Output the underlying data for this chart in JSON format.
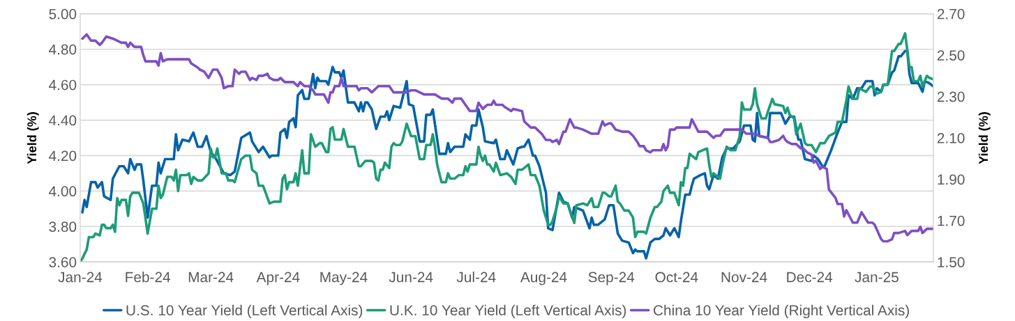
{
  "chart_data": {
    "type": "line",
    "ylabel": "Yield (%)",
    "y2label": "Yield (%)",
    "xlim": [
      "2024-01-01",
      "2025-01-27"
    ],
    "xticks": [
      {
        "value": "2024-01-01",
        "label": "Jan-24"
      },
      {
        "value": "2024-02-01",
        "label": "Feb-24"
      },
      {
        "value": "2024-03-01",
        "label": "Mar-24"
      },
      {
        "value": "2024-04-01",
        "label": "Apr-24"
      },
      {
        "value": "2024-05-01",
        "label": "May-24"
      },
      {
        "value": "2024-06-01",
        "label": "Jun-24"
      },
      {
        "value": "2024-07-01",
        "label": "Jul-24"
      },
      {
        "value": "2024-08-01",
        "label": "Aug-24"
      },
      {
        "value": "2024-09-01",
        "label": "Sep-24"
      },
      {
        "value": "2024-10-01",
        "label": "Oct-24"
      },
      {
        "value": "2024-11-01",
        "label": "Nov-24"
      },
      {
        "value": "2024-12-01",
        "label": "Dec-24"
      },
      {
        "value": "2025-01-01",
        "label": "Jan-25"
      }
    ],
    "ylim": [
      3.6,
      5.0
    ],
    "yticks": [
      {
        "value": 3.6,
        "label": "3.60"
      },
      {
        "value": 3.8,
        "label": "3.80"
      },
      {
        "value": 4.0,
        "label": "4.00"
      },
      {
        "value": 4.2,
        "label": "4.20"
      },
      {
        "value": 4.4,
        "label": "4.40"
      },
      {
        "value": 4.6,
        "label": "4.60"
      },
      {
        "value": 4.8,
        "label": "4.80"
      },
      {
        "value": 5.0,
        "label": "5.00"
      }
    ],
    "y2lim": [
      1.5,
      2.7
    ],
    "y2ticks": [
      {
        "value": 1.5,
        "label": "1.50"
      },
      {
        "value": 1.7,
        "label": "1.70"
      },
      {
        "value": 1.9,
        "label": "1.90"
      },
      {
        "value": 2.1,
        "label": "2.10"
      },
      {
        "value": 2.3,
        "label": "2.30"
      },
      {
        "value": 2.5,
        "label": "2.50"
      },
      {
        "value": 2.7,
        "label": "2.70"
      }
    ],
    "grid": "y",
    "legend": "bottom",
    "marker": "none",
    "line_style": "solid",
    "series": [
      {
        "name": "U.S. 10 Year Yield (Left Vertical Axis)",
        "color": "#0462a8",
        "axis": "y",
        "x": [
          "2024-01-02",
          "2024-01-03",
          "2024-01-04",
          "2024-01-06",
          "2024-01-08",
          "2024-01-09",
          "2024-01-11",
          "2024-01-12",
          "2024-01-15",
          "2024-01-16",
          "2024-01-19",
          "2024-01-21",
          "2024-01-23",
          "2024-01-24",
          "2024-01-26",
          "2024-01-27",
          "2024-01-29",
          "2024-01-30",
          "2024-02-01",
          "2024-02-03",
          "2024-02-05",
          "2024-02-06",
          "2024-02-07",
          "2024-02-09",
          "2024-02-13",
          "2024-02-14",
          "2024-02-15",
          "2024-02-17",
          "2024-02-20",
          "2024-02-22",
          "2024-02-24",
          "2024-02-26",
          "2024-02-28",
          "2024-03-01",
          "2024-03-03",
          "2024-03-07",
          "2024-03-10",
          "2024-03-12",
          "2024-03-15",
          "2024-03-19",
          "2024-03-20",
          "2024-03-23",
          "2024-03-25",
          "2024-03-28",
          "2024-03-29",
          "2024-04-01",
          "2024-04-02",
          "2024-04-04",
          "2024-04-05",
          "2024-04-06",
          "2024-04-08",
          "2024-04-09",
          "2024-04-10",
          "2024-04-12",
          "2024-04-13",
          "2024-04-15",
          "2024-04-17",
          "2024-04-18",
          "2024-04-19",
          "2024-04-20",
          "2024-04-23",
          "2024-04-24",
          "2024-04-26",
          "2024-04-27",
          "2024-04-29",
          "2024-04-30",
          "2024-05-01",
          "2024-05-03",
          "2024-05-06",
          "2024-05-08",
          "2024-05-09",
          "2024-05-10",
          "2024-05-11",
          "2024-05-12",
          "2024-05-14",
          "2024-05-16",
          "2024-05-18",
          "2024-05-20",
          "2024-05-21",
          "2024-05-22",
          "2024-05-24",
          "2024-05-27",
          "2024-05-30",
          "2024-05-31",
          "2024-06-02",
          "2024-06-05",
          "2024-06-07",
          "2024-06-08",
          "2024-06-10",
          "2024-06-11",
          "2024-06-14",
          "2024-06-17",
          "2024-06-18",
          "2024-06-19",
          "2024-06-21",
          "2024-06-25",
          "2024-06-26",
          "2024-06-28",
          "2024-06-29",
          "2024-07-01",
          "2024-07-02",
          "2024-07-04",
          "2024-07-05",
          "2024-07-09",
          "2024-07-10",
          "2024-07-12",
          "2024-07-14",
          "2024-07-15",
          "2024-07-18",
          "2024-07-20",
          "2024-07-22",
          "2024-07-23",
          "2024-07-25",
          "2024-07-27",
          "2024-07-28",
          "2024-07-30",
          "2024-08-02",
          "2024-08-03",
          "2024-08-05",
          "2024-08-08",
          "2024-08-10",
          "2024-08-12",
          "2024-08-14",
          "2024-08-15",
          "2024-08-19",
          "2024-08-22",
          "2024-08-23",
          "2024-08-24",
          "2024-08-26",
          "2024-08-29",
          "2024-08-31",
          "2024-09-02",
          "2024-09-04",
          "2024-09-06",
          "2024-09-09",
          "2024-09-11",
          "2024-09-12",
          "2024-09-13",
          "2024-09-16",
          "2024-09-17",
          "2024-09-19",
          "2024-09-21",
          "2024-09-23",
          "2024-09-25",
          "2024-09-26",
          "2024-09-28",
          "2024-09-30",
          "2024-10-02",
          "2024-10-03",
          "2024-10-05",
          "2024-10-07",
          "2024-10-08",
          "2024-10-09",
          "2024-10-12",
          "2024-10-14",
          "2024-10-15",
          "2024-10-16",
          "2024-10-18",
          "2024-10-20",
          "2024-10-22",
          "2024-10-24",
          "2024-10-27",
          "2024-10-30",
          "2024-11-01",
          "2024-11-04",
          "2024-11-05",
          "2024-11-06",
          "2024-11-07",
          "2024-11-08",
          "2024-11-12",
          "2024-11-13",
          "2024-11-14",
          "2024-11-18",
          "2024-11-20",
          "2024-11-22",
          "2024-11-24",
          "2024-11-26",
          "2024-11-27",
          "2024-11-29",
          "2024-12-02",
          "2024-12-03",
          "2024-12-05",
          "2024-12-07",
          "2024-12-08",
          "2024-12-11",
          "2024-12-14",
          "2024-12-16",
          "2024-12-18",
          "2024-12-19",
          "2024-12-21",
          "2024-12-23",
          "2024-12-25",
          "2024-12-27",
          "2024-12-30",
          "2024-12-31",
          "2025-01-01",
          "2025-01-03",
          "2025-01-04",
          "2025-01-06",
          "2025-01-08",
          "2025-01-09",
          "2025-01-11",
          "2025-01-12",
          "2025-01-14",
          "2025-01-15",
          "2025-01-16",
          "2025-01-17",
          "2025-01-20",
          "2025-01-22",
          "2025-01-23",
          "2025-01-25",
          "2025-01-27"
        ],
        "values": [
          3.88,
          3.95,
          3.91,
          4.05,
          4.05,
          4.02,
          4.05,
          3.97,
          3.95,
          4.07,
          4.14,
          4.14,
          4.1,
          4.18,
          4.12,
          4.15,
          4.15,
          4.06,
          3.85,
          4.03,
          4.03,
          4.16,
          4.1,
          4.18,
          4.18,
          4.32,
          4.23,
          4.29,
          4.28,
          4.33,
          4.25,
          4.25,
          4.31,
          4.22,
          4.19,
          4.1,
          4.09,
          4.11,
          4.3,
          4.33,
          4.28,
          4.22,
          4.25,
          4.19,
          4.2,
          4.2,
          4.33,
          4.35,
          4.3,
          4.39,
          4.41,
          4.36,
          4.54,
          4.57,
          4.52,
          4.52,
          4.66,
          4.58,
          4.64,
          4.62,
          4.62,
          4.6,
          4.7,
          4.67,
          4.67,
          4.64,
          4.68,
          4.5,
          4.5,
          4.45,
          4.5,
          4.45,
          4.5,
          4.5,
          4.46,
          4.35,
          4.42,
          4.42,
          4.45,
          4.4,
          4.48,
          4.47,
          4.62,
          4.49,
          4.48,
          4.28,
          4.28,
          4.43,
          4.43,
          4.46,
          4.21,
          4.21,
          4.27,
          4.22,
          4.25,
          4.25,
          4.32,
          4.29,
          4.37,
          4.37,
          4.46,
          4.36,
          4.28,
          4.27,
          4.29,
          4.18,
          4.18,
          4.23,
          4.15,
          4.24,
          4.25,
          4.25,
          4.29,
          4.2,
          4.2,
          4.14,
          3.99,
          3.79,
          3.78,
          3.99,
          3.94,
          3.93,
          3.85,
          3.91,
          3.89,
          3.79,
          3.85,
          3.81,
          3.81,
          3.84,
          3.92,
          3.92,
          3.76,
          3.72,
          3.71,
          3.65,
          3.67,
          3.66,
          3.66,
          3.62,
          3.71,
          3.73,
          3.73,
          3.75,
          3.79,
          3.75,
          3.79,
          3.74,
          3.83,
          3.98,
          3.98,
          4.03,
          4.07,
          4.09,
          4.1,
          4.03,
          4.01,
          4.09,
          4.07,
          4.19,
          4.24,
          4.24,
          4.28,
          4.37,
          4.37,
          4.29,
          4.28,
          4.44,
          4.31,
          4.3,
          4.44,
          4.44,
          4.44,
          4.38,
          4.42,
          4.42,
          4.29,
          4.29,
          4.18,
          4.17,
          4.2,
          4.18,
          4.14,
          4.14,
          4.23,
          4.33,
          4.39,
          4.39,
          4.54,
          4.52,
          4.58,
          4.58,
          4.62,
          4.62,
          4.54,
          4.58,
          4.56,
          4.6,
          4.6,
          4.67,
          4.68,
          4.76,
          4.76,
          4.79,
          4.79,
          4.66,
          4.61,
          4.61,
          4.56,
          4.62,
          4.61,
          4.59
        ]
      },
      {
        "name": "U.K. 10 Year Yield (Left Vertical Axis)",
        "color": "#1e9c78",
        "axis": "y",
        "x": [
          "2024-01-01",
          "2024-01-02",
          "2024-01-04",
          "2024-01-05",
          "2024-01-07",
          "2024-01-08",
          "2024-01-10",
          "2024-01-11",
          "2024-01-12",
          "2024-01-13",
          "2024-01-15",
          "2024-01-16",
          "2024-01-17",
          "2024-01-18",
          "2024-01-19",
          "2024-01-20",
          "2024-01-22",
          "2024-01-23",
          "2024-01-24",
          "2024-01-25",
          "2024-01-28",
          "2024-01-30",
          "2024-02-01",
          "2024-02-03",
          "2024-02-05",
          "2024-02-06",
          "2024-02-07",
          "2024-02-08",
          "2024-02-10",
          "2024-02-12",
          "2024-02-13",
          "2024-02-14",
          "2024-02-15",
          "2024-02-16",
          "2024-02-19",
          "2024-02-20",
          "2024-02-21",
          "2024-02-22",
          "2024-02-24",
          "2024-02-26",
          "2024-02-29",
          "2024-03-01",
          "2024-03-02",
          "2024-03-03",
          "2024-03-04",
          "2024-03-06",
          "2024-03-08",
          "2024-03-09",
          "2024-03-11",
          "2024-03-12",
          "2024-03-15",
          "2024-03-17",
          "2024-03-19",
          "2024-03-20",
          "2024-03-22",
          "2024-03-23",
          "2024-03-25",
          "2024-03-28",
          "2024-03-30",
          "2024-04-02",
          "2024-04-03",
          "2024-04-04",
          "2024-04-05",
          "2024-04-06",
          "2024-04-08",
          "2024-04-09",
          "2024-04-10",
          "2024-04-12",
          "2024-04-13",
          "2024-04-15",
          "2024-04-16",
          "2024-04-18",
          "2024-04-20",
          "2024-04-21",
          "2024-04-23",
          "2024-04-24",
          "2024-04-25",
          "2024-04-26",
          "2024-04-27",
          "2024-04-30",
          "2024-05-01",
          "2024-05-03",
          "2024-05-06",
          "2024-05-08",
          "2024-05-09",
          "2024-05-11",
          "2024-05-14",
          "2024-05-15",
          "2024-05-16",
          "2024-05-17",
          "2024-05-18",
          "2024-05-19",
          "2024-05-20",
          "2024-05-22",
          "2024-05-23",
          "2024-05-24",
          "2024-05-25",
          "2024-05-27",
          "2024-05-28",
          "2024-05-30",
          "2024-06-01",
          "2024-06-03",
          "2024-06-05",
          "2024-06-07",
          "2024-06-08",
          "2024-06-10",
          "2024-06-11",
          "2024-06-12",
          "2024-06-13",
          "2024-06-15",
          "2024-06-17",
          "2024-06-18",
          "2024-06-19",
          "2024-06-21",
          "2024-06-23",
          "2024-06-25",
          "2024-06-26",
          "2024-06-27",
          "2024-06-28",
          "2024-07-01",
          "2024-07-02",
          "2024-07-03",
          "2024-07-04",
          "2024-07-05",
          "2024-07-06",
          "2024-07-07",
          "2024-07-09",
          "2024-07-10",
          "2024-07-12",
          "2024-07-15",
          "2024-07-17",
          "2024-07-19",
          "2024-07-20",
          "2024-07-22",
          "2024-07-24",
          "2024-07-25",
          "2024-07-26",
          "2024-07-28",
          "2024-07-30",
          "2024-08-01",
          "2024-08-03",
          "2024-08-04",
          "2024-08-05",
          "2024-08-07",
          "2024-08-08",
          "2024-08-10",
          "2024-08-12",
          "2024-08-13",
          "2024-08-15",
          "2024-08-16",
          "2024-08-19",
          "2024-08-21",
          "2024-08-23",
          "2024-08-24",
          "2024-08-26",
          "2024-08-28",
          "2024-08-29",
          "2024-08-31",
          "2024-09-01",
          "2024-09-03",
          "2024-09-04",
          "2024-09-05",
          "2024-09-07",
          "2024-09-09",
          "2024-09-11",
          "2024-09-12",
          "2024-09-13",
          "2024-09-16",
          "2024-09-17",
          "2024-09-19",
          "2024-09-21",
          "2024-09-22",
          "2024-09-24",
          "2024-09-25",
          "2024-09-27",
          "2024-09-28",
          "2024-09-30",
          "2024-10-02",
          "2024-10-03",
          "2024-10-04",
          "2024-10-05",
          "2024-10-06",
          "2024-10-07",
          "2024-10-10",
          "2024-10-11",
          "2024-10-15",
          "2024-10-16",
          "2024-10-17",
          "2024-10-18",
          "2024-10-21",
          "2024-10-22",
          "2024-10-24",
          "2024-10-26",
          "2024-10-28",
          "2024-10-30",
          "2024-10-31",
          "2024-11-01",
          "2024-11-04",
          "2024-11-05",
          "2024-11-06",
          "2024-11-07",
          "2024-11-09",
          "2024-11-11",
          "2024-11-12",
          "2024-11-14",
          "2024-11-15",
          "2024-11-19",
          "2024-11-20",
          "2024-11-21",
          "2024-11-22",
          "2024-11-24",
          "2024-11-25",
          "2024-11-27",
          "2024-11-29",
          "2024-11-30",
          "2024-12-02",
          "2024-12-04",
          "2024-12-06",
          "2024-12-08",
          "2024-12-10",
          "2024-12-13",
          "2024-12-14",
          "2024-12-16",
          "2024-12-18",
          "2024-12-19",
          "2024-12-21",
          "2024-12-23",
          "2024-12-24",
          "2024-12-27",
          "2024-12-29",
          "2024-12-30",
          "2025-01-01",
          "2025-01-03",
          "2025-01-04",
          "2025-01-06",
          "2025-01-08",
          "2025-01-09",
          "2025-01-11",
          "2025-01-12",
          "2025-01-14",
          "2025-01-16",
          "2025-01-17",
          "2025-01-18",
          "2025-01-20",
          "2025-01-21",
          "2025-01-22",
          "2025-01-24",
          "2025-01-25",
          "2025-01-27"
        ],
        "values": [
          3.6,
          3.62,
          3.67,
          3.74,
          3.74,
          3.76,
          3.75,
          3.81,
          3.81,
          3.79,
          3.79,
          3.81,
          3.77,
          3.96,
          3.92,
          3.95,
          3.95,
          3.86,
          3.97,
          3.99,
          3.99,
          3.93,
          3.76,
          3.9,
          3.9,
          4.03,
          3.96,
          3.98,
          4.08,
          4.08,
          4.06,
          4.12,
          4.0,
          4.09,
          4.09,
          4.1,
          4.04,
          4.08,
          4.06,
          4.06,
          4.1,
          4.24,
          4.19,
          4.19,
          4.24,
          4.1,
          4.1,
          4.06,
          4.06,
          4.05,
          4.18,
          4.2,
          4.2,
          4.12,
          4.1,
          4.03,
          4.03,
          3.93,
          3.94,
          3.94,
          4.07,
          4.09,
          4.01,
          4.05,
          4.05,
          4.1,
          4.03,
          4.23,
          4.1,
          4.1,
          4.32,
          4.25,
          4.27,
          4.27,
          4.22,
          4.22,
          4.35,
          4.36,
          4.29,
          4.29,
          4.35,
          4.25,
          4.25,
          4.14,
          4.14,
          4.17,
          4.17,
          4.16,
          4.07,
          4.06,
          4.12,
          4.12,
          4.16,
          4.13,
          4.25,
          4.27,
          4.26,
          4.26,
          4.28,
          4.38,
          4.31,
          4.31,
          4.18,
          4.18,
          4.26,
          4.26,
          4.32,
          4.25,
          4.15,
          4.05,
          4.05,
          4.1,
          4.07,
          4.07,
          4.09,
          4.09,
          4.14,
          4.11,
          4.15,
          4.15,
          4.25,
          4.2,
          4.17,
          4.2,
          4.15,
          4.15,
          4.11,
          4.16,
          4.09,
          4.1,
          4.08,
          4.04,
          4.12,
          4.12,
          4.14,
          4.15,
          4.09,
          4.09,
          4.03,
          3.89,
          3.81,
          3.81,
          3.83,
          3.91,
          3.97,
          3.93,
          3.93,
          3.89,
          3.82,
          3.92,
          3.93,
          3.92,
          3.96,
          3.91,
          3.91,
          3.99,
          3.99,
          3.97,
          3.97,
          4.03,
          3.94,
          3.93,
          3.89,
          3.89,
          3.85,
          3.74,
          3.77,
          3.77,
          3.76,
          3.85,
          3.91,
          3.91,
          3.94,
          4.0,
          4.03,
          3.99,
          3.99,
          3.92,
          4.05,
          4.03,
          4.13,
          4.13,
          4.21,
          4.18,
          4.22,
          4.24,
          4.15,
          4.08,
          4.1,
          4.07,
          4.14,
          4.25,
          4.23,
          4.23,
          4.31,
          4.5,
          4.46,
          4.46,
          4.49,
          4.58,
          4.49,
          4.41,
          4.41,
          4.45,
          4.52,
          4.49,
          4.48,
          4.44,
          4.47,
          4.43,
          4.41,
          4.32,
          4.38,
          4.27,
          4.26,
          4.26,
          4.22,
          4.27,
          4.27,
          4.31,
          4.33,
          4.39,
          4.39,
          4.51,
          4.59,
          4.52,
          4.52,
          4.58,
          4.56,
          4.59,
          4.59,
          4.55,
          4.56,
          4.6,
          4.6,
          4.79,
          4.79,
          4.83,
          4.83,
          4.89,
          4.7,
          4.7,
          4.62,
          4.62,
          4.65,
          4.59,
          4.65,
          4.64,
          4.63
        ]
      },
      {
        "name": "China 10 Year Yield (Right Vertical Axis)",
        "color": "#7d4fc4",
        "axis": "y2",
        "x": [
          "2024-01-02",
          "2024-01-04",
          "2024-01-06",
          "2024-01-08",
          "2024-01-10",
          "2024-01-11",
          "2024-01-13",
          "2024-01-16",
          "2024-01-18",
          "2024-01-20",
          "2024-01-22",
          "2024-01-23",
          "2024-01-24",
          "2024-01-26",
          "2024-01-29",
          "2024-01-30",
          "2024-01-31",
          "2024-02-01",
          "2024-02-05",
          "2024-02-06",
          "2024-02-07",
          "2024-02-08",
          "2024-02-10",
          "2024-02-20",
          "2024-02-21",
          "2024-02-24",
          "2024-02-25",
          "2024-02-27",
          "2024-02-29",
          "2024-03-02",
          "2024-03-04",
          "2024-03-06",
          "2024-03-07",
          "2024-03-09",
          "2024-03-11",
          "2024-03-12",
          "2024-03-14",
          "2024-03-15",
          "2024-03-17",
          "2024-03-19",
          "2024-03-20",
          "2024-03-22",
          "2024-03-23",
          "2024-03-25",
          "2024-03-27",
          "2024-03-28",
          "2024-03-30",
          "2024-04-01",
          "2024-04-02",
          "2024-04-04",
          "2024-04-08",
          "2024-04-10",
          "2024-04-11",
          "2024-04-13",
          "2024-04-15",
          "2024-04-17",
          "2024-04-18",
          "2024-04-22",
          "2024-04-24",
          "2024-04-25",
          "2024-04-26",
          "2024-04-27",
          "2024-04-29",
          "2024-04-30",
          "2024-05-01",
          "2024-05-07",
          "2024-05-08",
          "2024-05-09",
          "2024-05-12",
          "2024-05-14",
          "2024-05-17",
          "2024-05-22",
          "2024-05-24",
          "2024-05-28",
          "2024-05-30",
          "2024-06-01",
          "2024-06-03",
          "2024-06-05",
          "2024-06-07",
          "2024-06-12",
          "2024-06-15",
          "2024-06-18",
          "2024-06-20",
          "2024-06-21",
          "2024-06-24",
          "2024-06-26",
          "2024-06-28",
          "2024-07-01",
          "2024-07-02",
          "2024-07-04",
          "2024-07-06",
          "2024-07-08",
          "2024-07-09",
          "2024-07-10",
          "2024-07-13",
          "2024-07-14",
          "2024-07-17",
          "2024-07-18",
          "2024-07-22",
          "2024-07-23",
          "2024-07-26",
          "2024-07-28",
          "2024-07-30",
          "2024-07-31",
          "2024-08-02",
          "2024-08-04",
          "2024-08-05",
          "2024-08-07",
          "2024-08-08",
          "2024-08-10",
          "2024-08-11",
          "2024-08-13",
          "2024-08-15",
          "2024-08-16",
          "2024-08-19",
          "2024-08-21",
          "2024-08-23",
          "2024-08-26",
          "2024-08-28",
          "2024-08-29",
          "2024-08-31",
          "2024-09-01",
          "2024-09-03",
          "2024-09-06",
          "2024-09-09",
          "2024-09-11",
          "2024-09-13",
          "2024-09-14",
          "2024-09-16",
          "2024-09-17",
          "2024-09-19",
          "2024-09-20",
          "2024-09-24",
          "2024-09-25",
          "2024-09-26",
          "2024-09-27",
          "2024-09-28",
          "2024-09-30",
          "2024-10-01",
          "2024-10-07",
          "2024-10-08",
          "2024-10-11",
          "2024-10-14",
          "2024-10-15",
          "2024-10-18",
          "2024-10-19",
          "2024-10-21",
          "2024-10-23",
          "2024-10-24",
          "2024-10-31",
          "2024-11-02",
          "2024-11-06",
          "2024-11-08",
          "2024-11-12",
          "2024-11-13",
          "2024-11-14",
          "2024-11-17",
          "2024-11-19",
          "2024-11-20",
          "2024-11-21",
          "2024-11-23",
          "2024-11-25",
          "2024-11-27",
          "2024-11-28",
          "2024-11-30",
          "2024-12-02",
          "2024-12-03",
          "2024-12-04",
          "2024-12-06",
          "2024-12-07",
          "2024-12-09",
          "2024-12-10",
          "2024-12-13",
          "2024-12-14",
          "2024-12-16",
          "2024-12-17",
          "2024-12-18",
          "2024-12-21",
          "2024-12-23",
          "2024-12-25",
          "2024-12-28",
          "2024-12-30",
          "2024-12-31",
          "2025-01-03",
          "2025-01-04",
          "2025-01-06",
          "2025-01-08",
          "2025-01-09",
          "2025-01-11",
          "2025-01-14",
          "2025-01-15",
          "2025-01-17",
          "2025-01-20",
          "2025-01-21",
          "2025-01-22",
          "2025-01-24",
          "2025-01-27"
        ],
        "values": [
          2.58,
          2.6,
          2.57,
          2.57,
          2.55,
          2.56,
          2.59,
          2.58,
          2.57,
          2.56,
          2.56,
          2.54,
          2.56,
          2.54,
          2.54,
          2.5,
          2.47,
          2.47,
          2.47,
          2.45,
          2.51,
          2.47,
          2.48,
          2.48,
          2.46,
          2.44,
          2.43,
          2.42,
          2.39,
          2.43,
          2.43,
          2.39,
          2.34,
          2.35,
          2.35,
          2.43,
          2.41,
          2.42,
          2.42,
          2.38,
          2.39,
          2.38,
          2.4,
          2.4,
          2.41,
          2.39,
          2.38,
          2.38,
          2.39,
          2.37,
          2.37,
          2.35,
          2.37,
          2.35,
          2.35,
          2.33,
          2.31,
          2.31,
          2.27,
          2.32,
          2.32,
          2.35,
          2.35,
          2.39,
          2.35,
          2.35,
          2.33,
          2.34,
          2.34,
          2.32,
          2.35,
          2.35,
          2.32,
          2.32,
          2.32,
          2.33,
          2.33,
          2.32,
          2.31,
          2.31,
          2.29,
          2.29,
          2.27,
          2.29,
          2.29,
          2.26,
          2.23,
          2.23,
          2.27,
          2.24,
          2.26,
          2.26,
          2.28,
          2.26,
          2.26,
          2.25,
          2.23,
          2.24,
          2.23,
          2.18,
          2.15,
          2.15,
          2.13,
          2.12,
          2.09,
          2.09,
          2.08,
          2.09,
          2.07,
          2.13,
          2.13,
          2.19,
          2.15,
          2.15,
          2.14,
          2.13,
          2.12,
          2.12,
          2.18,
          2.16,
          2.17,
          2.17,
          2.14,
          2.13,
          2.13,
          2.11,
          2.08,
          2.06,
          2.06,
          2.04,
          2.03,
          2.04,
          2.04,
          2.07,
          2.04,
          2.06,
          2.14,
          2.14,
          2.15,
          2.15,
          2.19,
          2.13,
          2.13,
          2.13,
          2.1,
          2.11,
          2.11,
          2.14,
          2.14,
          2.14,
          2.12,
          2.12,
          2.11,
          2.1,
          2.08,
          2.08,
          2.09,
          2.11,
          2.09,
          2.08,
          2.07,
          2.07,
          2.05,
          2.05,
          2.03,
          2.02,
          1.98,
          1.99,
          1.95,
          1.96,
          1.95,
          1.85,
          1.81,
          1.78,
          1.78,
          1.72,
          1.75,
          1.69,
          1.69,
          1.74,
          1.69,
          1.69,
          1.68,
          1.61,
          1.6,
          1.6,
          1.61,
          1.64,
          1.64,
          1.65,
          1.63,
          1.65,
          1.65,
          1.67,
          1.64,
          1.66,
          1.66
        ]
      }
    ]
  }
}
